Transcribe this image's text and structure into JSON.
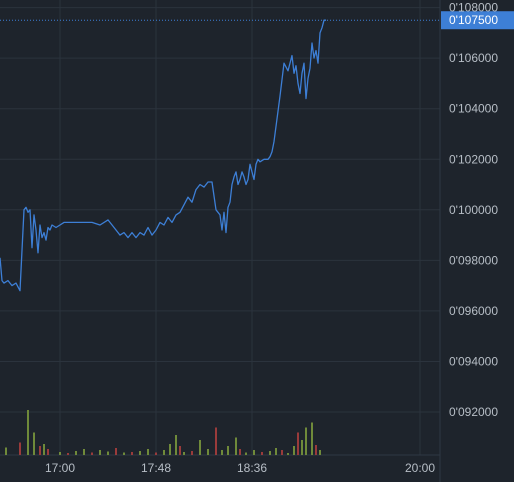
{
  "chart_data": {
    "type": "line",
    "colors": {
      "background": "#1e242c",
      "grid": "#2b333d",
      "line": "#3d7fd6",
      "last_price_badge": "#3d7fd6",
      "volume_up": "#6f8a3a",
      "volume_down": "#9a3b3b",
      "axis_text": "#b7bec6"
    },
    "x_tick_labels": [
      "17:00",
      "17:48",
      "18:36",
      "20:00"
    ],
    "x_tick_minutes": [
      1020,
      1068,
      1116,
      1200
    ],
    "y_tick_labels": [
      "0'108000",
      "0'106000",
      "0'104000",
      "0'102000",
      "0'100000",
      "0'098000",
      "0'096000",
      "0'094000",
      "0'092000"
    ],
    "y_tick_values": [
      0.108,
      0.106,
      0.104,
      0.102,
      0.1,
      0.098,
      0.096,
      0.094,
      0.092
    ],
    "ylim": [
      0.0903,
      0.1083
    ],
    "xlim_minutes": [
      990,
      1210
    ],
    "last_price": 0.1075,
    "last_price_label": "0'107500",
    "grid": true,
    "series": [
      {
        "x_minutes": [
          990,
          991,
          992,
          994,
          996,
          998,
          1000,
          1002,
          1003,
          1004,
          1005,
          1006,
          1007,
          1008,
          1009,
          1010,
          1011,
          1012,
          1013,
          1014,
          1015,
          1016,
          1018,
          1020,
          1022,
          1025,
          1028,
          1032,
          1036,
          1040,
          1044,
          1048,
          1050,
          1052,
          1054,
          1056,
          1058,
          1060,
          1062,
          1064,
          1066,
          1068,
          1070,
          1072,
          1074,
          1076,
          1078,
          1080,
          1082,
          1084,
          1086,
          1088,
          1090,
          1092,
          1094,
          1096,
          1098,
          1100,
          1101,
          1102,
          1103,
          1104,
          1105,
          1106,
          1107,
          1108,
          1109,
          1110,
          1111,
          1112,
          1113,
          1114,
          1115,
          1116,
          1117,
          1118,
          1119,
          1120,
          1122,
          1124,
          1125,
          1126,
          1127,
          1128,
          1130,
          1132,
          1134,
          1136,
          1137,
          1138,
          1139,
          1140,
          1141,
          1142,
          1143,
          1144,
          1145,
          1146,
          1147,
          1148,
          1149,
          1150,
          1151,
          1152,
          1153
        ],
        "y": [
          0.0981,
          0.0972,
          0.0971,
          0.0972,
          0.097,
          0.0971,
          0.0968,
          0.1,
          0.1001,
          0.0999,
          0.1,
          0.0985,
          0.0998,
          0.0992,
          0.0983,
          0.0994,
          0.0989,
          0.0991,
          0.0988,
          0.0993,
          0.0992,
          0.0994,
          0.0993,
          0.0994,
          0.0995,
          0.0995,
          0.0995,
          0.0995,
          0.0995,
          0.0994,
          0.0996,
          0.0992,
          0.099,
          0.0991,
          0.0989,
          0.0991,
          0.0989,
          0.0991,
          0.099,
          0.0993,
          0.099,
          0.0992,
          0.0995,
          0.0994,
          0.0997,
          0.0995,
          0.0998,
          0.0999,
          0.1002,
          0.1005,
          0.1003,
          0.1008,
          0.101,
          0.1009,
          0.1011,
          0.1011,
          0.1,
          0.0998,
          0.0992,
          0.0999,
          0.0991,
          0.1001,
          0.1003,
          0.101,
          0.1013,
          0.1015,
          0.101,
          0.1012,
          0.1015,
          0.1013,
          0.101,
          0.1012,
          0.1018,
          0.1015,
          0.1012,
          0.1018,
          0.102,
          0.1019,
          0.102,
          0.102,
          0.1021,
          0.1023,
          0.1027,
          0.1033,
          0.1045,
          0.1058,
          0.1055,
          0.1061,
          0.1054,
          0.1057,
          0.105,
          0.1046,
          0.1054,
          0.1058,
          0.1044,
          0.1052,
          0.1056,
          0.1066,
          0.106,
          0.1063,
          0.1058,
          0.107,
          0.1072,
          0.1075,
          0.1075
        ]
      }
    ],
    "volume": {
      "x_minutes": [
        993,
        1000,
        1004,
        1007,
        1010,
        1012,
        1014,
        1020,
        1024,
        1028,
        1032,
        1036,
        1040,
        1044,
        1048,
        1052,
        1056,
        1060,
        1064,
        1068,
        1072,
        1075,
        1078,
        1080,
        1082,
        1086,
        1090,
        1094,
        1098,
        1101,
        1104,
        1108,
        1110,
        1113,
        1117,
        1121,
        1125,
        1128,
        1131,
        1134,
        1137,
        1139,
        1141,
        1143,
        1146,
        1148,
        1150
      ],
      "values": [
        0.15,
        0.25,
        0.9,
        0.45,
        0.18,
        0.22,
        0.12,
        0.06,
        0.04,
        0.08,
        0.12,
        0.05,
        0.1,
        0.07,
        0.14,
        0.05,
        0.06,
        0.08,
        0.12,
        0.05,
        0.1,
        0.22,
        0.4,
        0.18,
        0.06,
        0.08,
        0.3,
        0.12,
        0.55,
        0.1,
        0.18,
        0.35,
        0.12,
        0.05,
        0.1,
        0.06,
        0.08,
        0.14,
        0.1,
        0.04,
        0.18,
        0.45,
        0.3,
        0.55,
        0.65,
        0.2,
        0.1
      ],
      "up": [
        true,
        false,
        true,
        true,
        false,
        true,
        false,
        true,
        false,
        true,
        true,
        false,
        true,
        true,
        false,
        true,
        false,
        true,
        true,
        false,
        true,
        true,
        true,
        false,
        true,
        false,
        true,
        true,
        false,
        true,
        true,
        true,
        false,
        true,
        true,
        false,
        true,
        true,
        false,
        true,
        true,
        false,
        true,
        true,
        true,
        false,
        true
      ]
    }
  }
}
